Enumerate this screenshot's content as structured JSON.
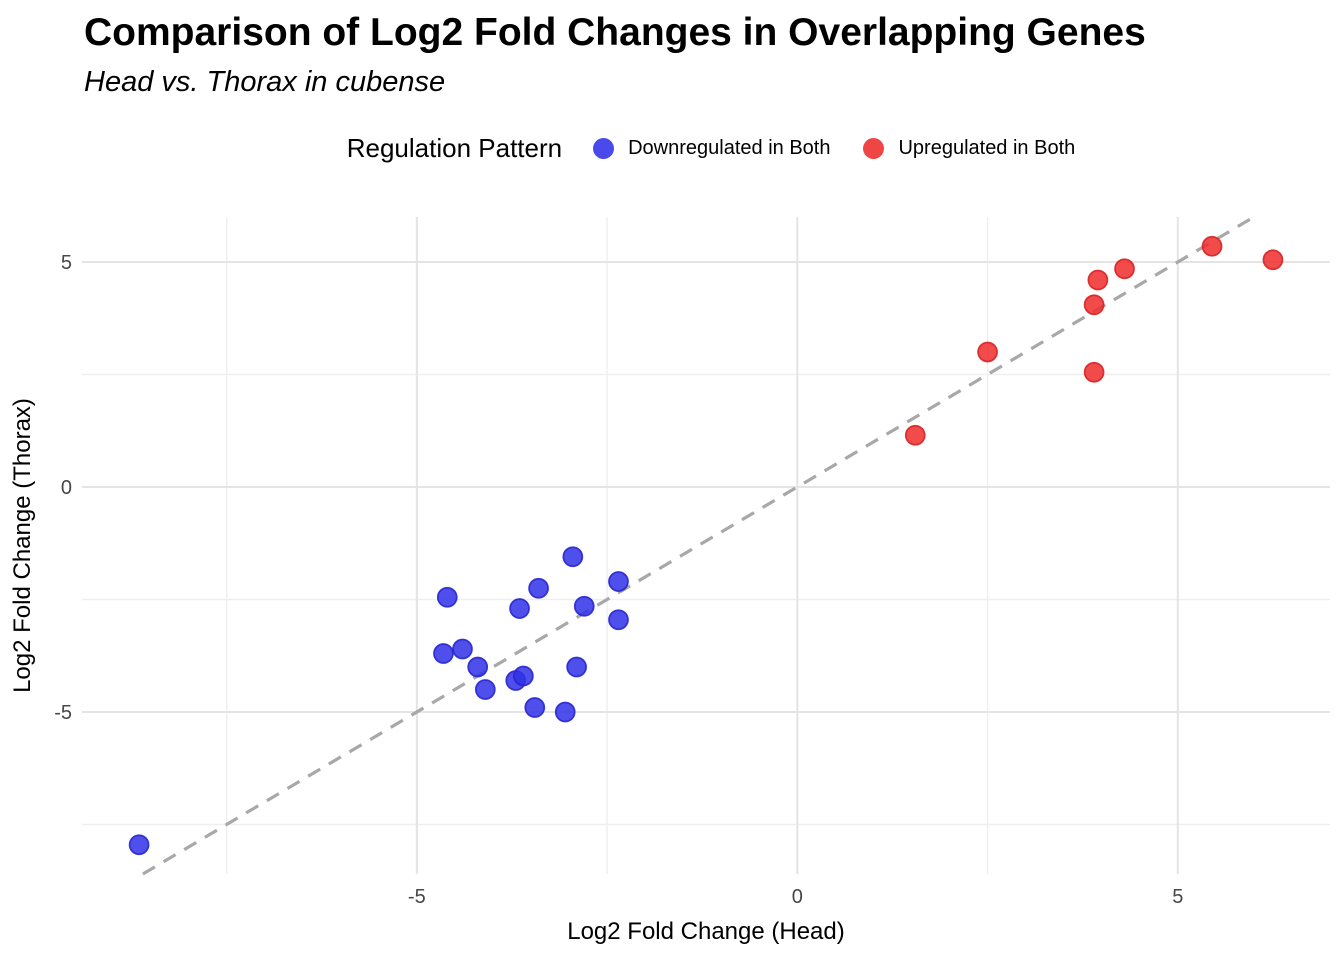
{
  "header": {
    "title": "Comparison of Log2 Fold Changes in Overlapping Genes",
    "subtitle": "Head vs. Thorax in cubense"
  },
  "legend": {
    "title": "Regulation Pattern",
    "position": "top",
    "items": [
      {
        "label": "Downregulated in Both",
        "color": "#4a4aec"
      },
      {
        "label": "Upregulated in Both",
        "color": "#f04545"
      }
    ]
  },
  "chart_data": {
    "type": "scatter",
    "title": "Comparison of Log2 Fold Changes in Overlapping Genes",
    "subtitle": "Head vs. Thorax in cubense",
    "xlabel": "Log2 Fold Change (Head)",
    "ylabel": "Log2 Fold Change (Thorax)",
    "legend_title": "Regulation Pattern",
    "xlim": [
      -9.4,
      7.0
    ],
    "ylim": [
      -8.6,
      6.0
    ],
    "x_ticks_major": [
      -5,
      0,
      5
    ],
    "x_ticks_minor": [
      -7.5,
      -2.5,
      2.5
    ],
    "y_ticks_major": [
      -5,
      0,
      5
    ],
    "y_ticks_minor": [
      -7.5,
      -2.5,
      2.5
    ],
    "grid": true,
    "identity_line": {
      "equation": "y = x",
      "style": "dashed",
      "span": [
        -8.6,
        6.0
      ],
      "color": "#a8a8a8"
    },
    "series": [
      {
        "name": "Downregulated in Both",
        "fill": "#3030e8",
        "edge": "#2626cf",
        "points": [
          [
            -4.6,
            -2.45
          ],
          [
            -3.4,
            -2.25
          ],
          [
            -2.95,
            -1.55
          ],
          [
            -2.35,
            -2.1
          ],
          [
            -3.65,
            -2.7
          ],
          [
            -2.8,
            -2.65
          ],
          [
            -2.35,
            -2.95
          ],
          [
            -4.65,
            -3.7
          ],
          [
            -4.4,
            -3.6
          ],
          [
            -4.2,
            -4.0
          ],
          [
            -4.1,
            -4.5
          ],
          [
            -3.7,
            -4.3
          ],
          [
            -3.6,
            -4.2
          ],
          [
            -2.9,
            -4.0
          ],
          [
            -3.45,
            -4.9
          ],
          [
            -3.05,
            -5.0
          ],
          [
            -8.65,
            -7.95
          ]
        ]
      },
      {
        "name": "Upregulated in Both",
        "fill": "#f02c2c",
        "edge": "#d62222",
        "points": [
          [
            1.55,
            1.15
          ],
          [
            2.5,
            3.0
          ],
          [
            3.9,
            2.55
          ],
          [
            3.9,
            4.05
          ],
          [
            3.95,
            4.6
          ],
          [
            4.3,
            4.85
          ],
          [
            5.45,
            5.35
          ],
          [
            6.25,
            5.05
          ]
        ]
      }
    ],
    "style": {
      "grid_major_color": "#e4e4e4",
      "grid_minor_color": "#efefef",
      "axis_text_color": "#474747",
      "axis_title_color": "#000000"
    }
  }
}
